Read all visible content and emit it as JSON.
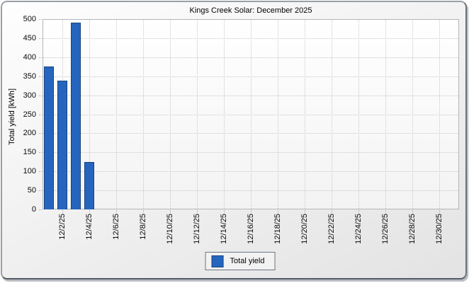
{
  "chart_data": {
    "type": "bar",
    "title": "Kings Creek Solar: December 2025",
    "ylabel": "Total yield [kWh]",
    "ylim": [
      0,
      500
    ],
    "yticks": [
      0,
      50,
      100,
      150,
      200,
      250,
      300,
      350,
      400,
      450,
      500
    ],
    "xlim_days": [
      0.5,
      31.5
    ],
    "xticks": [
      {
        "day": 2,
        "label": "12/2/25"
      },
      {
        "day": 4,
        "label": "12/4/25"
      },
      {
        "day": 6,
        "label": "12/6/25"
      },
      {
        "day": 8,
        "label": "12/8/25"
      },
      {
        "day": 10,
        "label": "12/10/25"
      },
      {
        "day": 12,
        "label": "12/12/25"
      },
      {
        "day": 14,
        "label": "12/14/25"
      },
      {
        "day": 16,
        "label": "12/16/25"
      },
      {
        "day": 18,
        "label": "12/18/25"
      },
      {
        "day": 20,
        "label": "12/20/25"
      },
      {
        "day": 22,
        "label": "12/22/25"
      },
      {
        "day": 24,
        "label": "12/24/25"
      },
      {
        "day": 26,
        "label": "12/26/25"
      },
      {
        "day": 28,
        "label": "12/28/25"
      },
      {
        "day": 30,
        "label": "12/30/25"
      }
    ],
    "grid": "dotted",
    "legend": {
      "position": "bottom",
      "label": "Total yield"
    },
    "series": [
      {
        "name": "Total yield",
        "color": "#2565bd",
        "border_color": "#17437f",
        "points": [
          {
            "day": 1,
            "date": "12/1/25",
            "value": 375
          },
          {
            "day": 2,
            "date": "12/2/25",
            "value": 338
          },
          {
            "day": 3,
            "date": "12/3/25",
            "value": 490
          },
          {
            "day": 4,
            "date": "12/4/25",
            "value": 125
          }
        ]
      }
    ]
  },
  "colors": {
    "bar_fill": "#2565bd",
    "bar_border": "#17437f",
    "grid": "#c8c8c8",
    "plot_border": "#b2b6ba",
    "legend_border": "#6d757d",
    "legend_bg": "#f2f2f2",
    "window_border_light": "#999fa5",
    "window_border_dark": "#575d67"
  }
}
